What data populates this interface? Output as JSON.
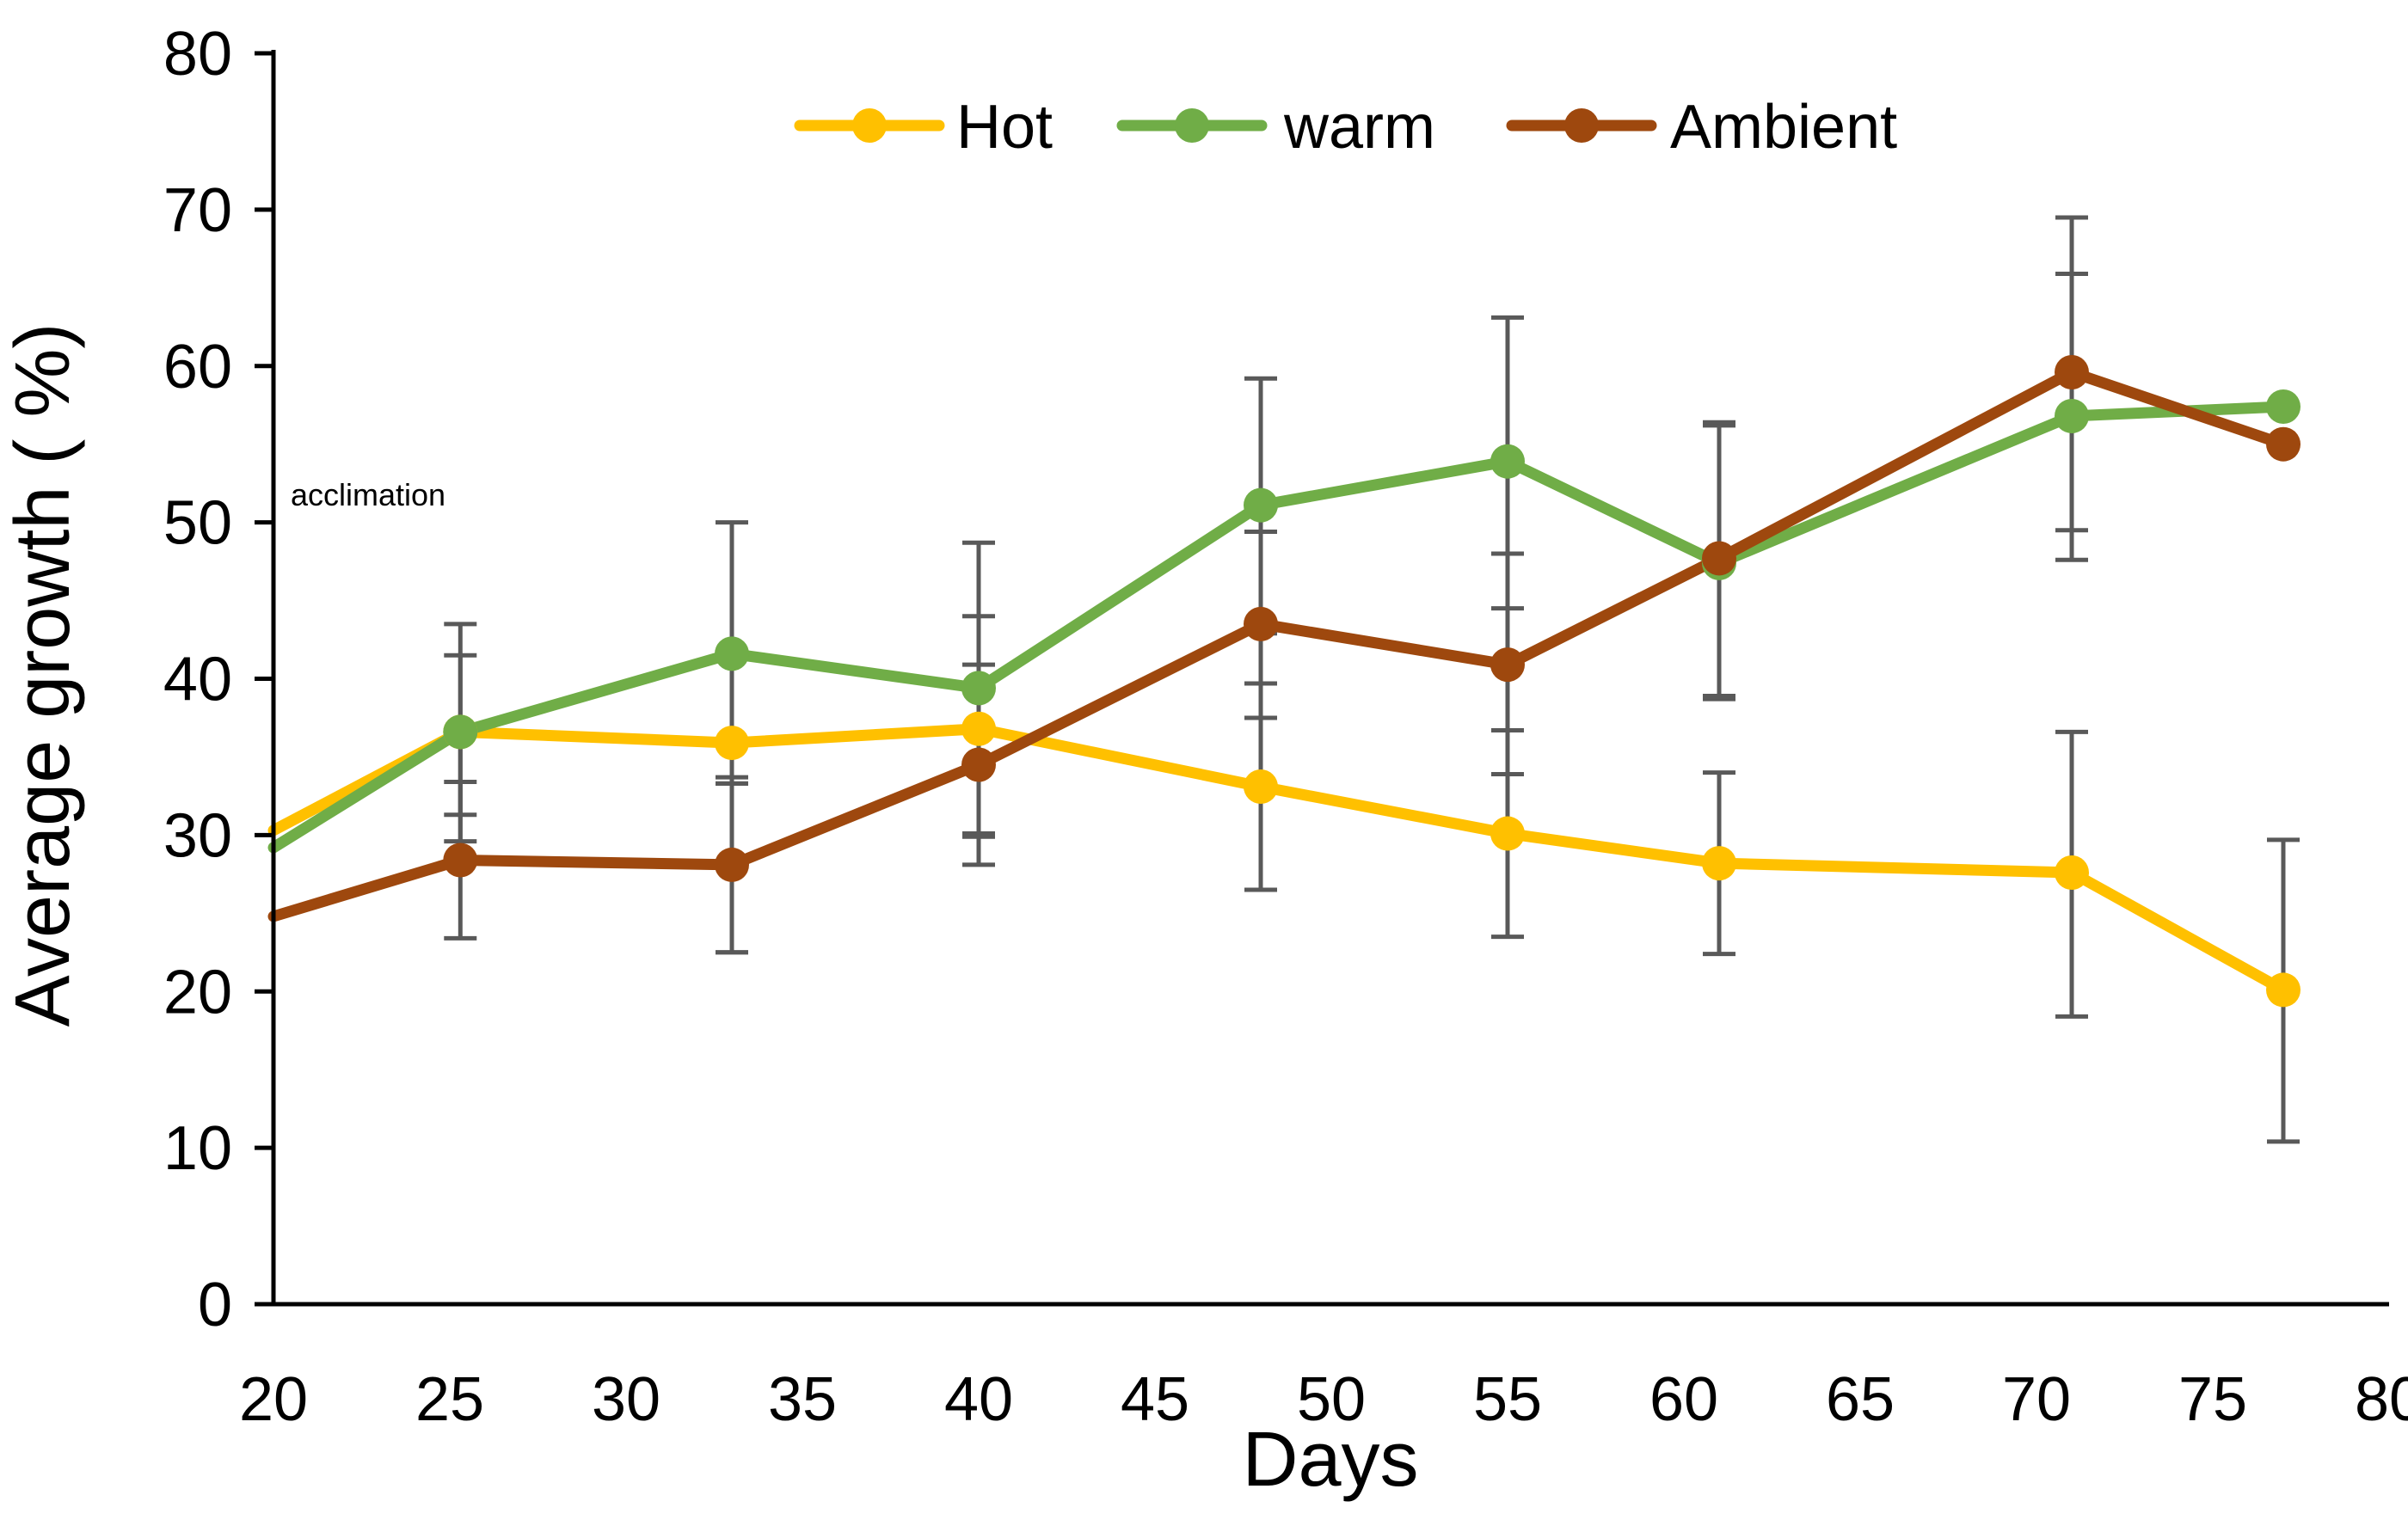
{
  "chart_data": {
    "type": "line",
    "title": "",
    "xlabel": "Days",
    "ylabel": "Average growth ( %)",
    "xlim": [
      20,
      80
    ],
    "ylim": [
      0,
      80
    ],
    "xticks": [
      20,
      25,
      30,
      35,
      40,
      45,
      50,
      55,
      60,
      65,
      70,
      75,
      80
    ],
    "yticks": [
      0,
      10,
      20,
      30,
      40,
      50,
      60,
      70,
      80
    ],
    "grid": false,
    "legend_position": "top-center",
    "annotation": "acclimation",
    "series": [
      {
        "name": "Hot",
        "color": "#FFC000",
        "points": [
          {
            "x": 20,
            "y": 30.3,
            "marker": false
          },
          {
            "x": 25.3,
            "y": 36.6,
            "err_low": 31.3,
            "err_high": 41.5,
            "marker": true
          },
          {
            "x": 33,
            "y": 35.9,
            "err_low": 22.5,
            "err_high": 33.3,
            "marker": true
          },
          {
            "x": 40,
            "y": 36.8,
            "err_low": 29.9,
            "err_high": 44.0,
            "marker": true
          },
          {
            "x": 48,
            "y": 33.1,
            "err_low": 26.5,
            "err_high": 39.7,
            "marker": true
          },
          {
            "x": 55,
            "y": 30.1,
            "err_low": 23.5,
            "err_high": 36.7,
            "marker": true
          },
          {
            "x": 61,
            "y": 28.2,
            "err_low": 22.4,
            "err_high": 34.0,
            "marker": true
          },
          {
            "x": 71,
            "y": 27.6,
            "err_low": 18.4,
            "err_high": 36.6,
            "marker": true
          },
          {
            "x": 77,
            "y": 20.1,
            "err_low": 10.4,
            "err_high": 29.7,
            "marker": true
          }
        ]
      },
      {
        "name": "warm",
        "color": "#70AD47",
        "points": [
          {
            "x": 20,
            "y": 29.2,
            "marker": false
          },
          {
            "x": 25.3,
            "y": 36.6,
            "err_low": 29.6,
            "err_high": 43.5,
            "marker": true
          },
          {
            "x": 33,
            "y": 41.6,
            "err_low": 33.3,
            "err_high": 50.0,
            "marker": true
          },
          {
            "x": 40,
            "y": 39.4,
            "err_low": 30.1,
            "err_high": 48.7,
            "marker": true
          },
          {
            "x": 48,
            "y": 51.1,
            "err_low": 42.9,
            "err_high": 59.2,
            "marker": true
          },
          {
            "x": 55,
            "y": 53.9,
            "err_low": 44.5,
            "err_high": 63.1,
            "marker": true
          },
          {
            "x": 61,
            "y": 47.4,
            "err_low": 38.7,
            "err_high": 56.2,
            "marker": true
          },
          {
            "x": 71,
            "y": 56.8,
            "err_low": 47.6,
            "err_high": 65.9,
            "marker": true
          },
          {
            "x": 77,
            "y": 57.4,
            "marker": true
          }
        ]
      },
      {
        "name": "Ambient",
        "color": "#9E480E",
        "points": [
          {
            "x": 20,
            "y": 24.8,
            "marker": false
          },
          {
            "x": 25.3,
            "y": 28.4,
            "err_low": 23.4,
            "err_high": 33.4,
            "marker": true
          },
          {
            "x": 33,
            "y": 28.1,
            "err_low": 22.5,
            "err_high": 33.7,
            "marker": true
          },
          {
            "x": 40,
            "y": 34.5,
            "err_low": 28.1,
            "err_high": 40.9,
            "marker": true
          },
          {
            "x": 48,
            "y": 43.5,
            "err_low": 37.5,
            "err_high": 49.4,
            "marker": true
          },
          {
            "x": 55,
            "y": 40.9,
            "err_low": 33.9,
            "err_high": 48.0,
            "marker": true
          },
          {
            "x": 61,
            "y": 47.7,
            "err_low": 38.9,
            "err_high": 56.4,
            "marker": true
          },
          {
            "x": 71,
            "y": 59.6,
            "err_low": 49.5,
            "err_high": 69.5,
            "marker": true
          },
          {
            "x": 77,
            "y": 55.0,
            "marker": true
          }
        ]
      }
    ]
  }
}
